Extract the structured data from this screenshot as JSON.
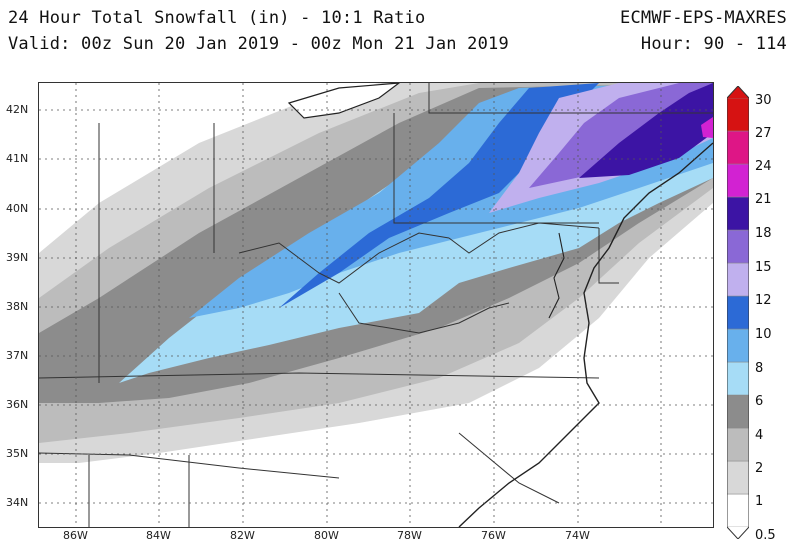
{
  "header": {
    "title": "24 Hour Total Snowfall (in) - 10:1 Ratio",
    "valid": "Valid: 00z Sun 20 Jan 2019 - 00z Mon 21 Jan 2019",
    "model": "ECMWF-EPS-MAXRES",
    "hour": "Hour: 90 - 114"
  },
  "latitudes": [
    "42N",
    "41N",
    "40N",
    "39N",
    "38N",
    "37N",
    "36N",
    "35N",
    "34N"
  ],
  "longitudes": [
    "86W",
    "84W",
    "82W",
    "80W",
    "78W",
    "76W",
    "74W"
  ],
  "colorbar": {
    "labels": [
      "30",
      "27",
      "24",
      "21",
      "18",
      "15",
      "12",
      "10",
      "8",
      "6",
      "4",
      "2",
      "1",
      "0.5"
    ],
    "colors": [
      "#ffffff",
      "#d8d8d8",
      "#bcbcbc",
      "#8c8c8c",
      "#a6dcf6",
      "#68b0ec",
      "#2c6ad6",
      "#c0b0ee",
      "#8a68d6",
      "#3c14a4",
      "#d222d2",
      "#de1686",
      "#d61212"
    ]
  }
}
